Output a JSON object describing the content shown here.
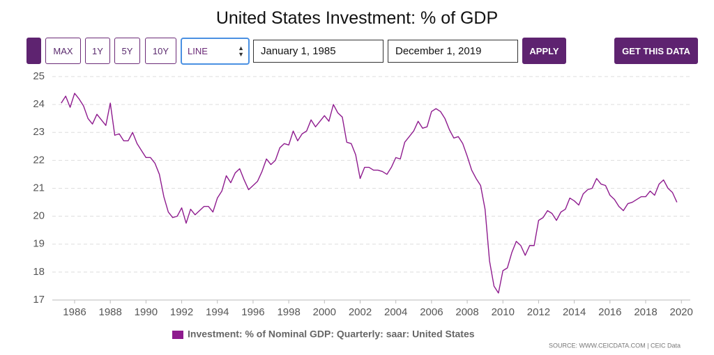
{
  "controls": {
    "range_buttons": [
      "MAX",
      "1Y",
      "5Y",
      "10Y"
    ],
    "chart_kind": "LINE",
    "start_date": "January 1, 1985",
    "end_date": "December 1, 2019",
    "apply": "APPLY",
    "get_data": "GET THIS DATA"
  },
  "source": "SOURCE: WWW.CEICDATA.COM | CEIC Data",
  "chart_data": {
    "type": "line",
    "title": "United States Investment: % of GDP",
    "xlim": [
      1984.75,
      2020.5
    ],
    "xticks": [
      1986,
      1988,
      1990,
      1992,
      1994,
      1996,
      1998,
      2000,
      2002,
      2004,
      2006,
      2008,
      2010,
      2012,
      2014,
      2016,
      2018,
      2020
    ],
    "ylim": [
      17,
      25
    ],
    "yticks": [
      17,
      18,
      19,
      20,
      21,
      22,
      23,
      24,
      25
    ],
    "grid": true,
    "x": [
      1985.25,
      1985.5,
      1985.75,
      1986,
      1986.25,
      1986.5,
      1986.75,
      1987,
      1987.25,
      1987.5,
      1987.75,
      1988,
      1988.25,
      1988.5,
      1988.75,
      1989,
      1989.25,
      1989.5,
      1989.75,
      1990,
      1990.25,
      1990.5,
      1990.75,
      1991,
      1991.25,
      1991.5,
      1991.75,
      1992,
      1992.25,
      1992.5,
      1992.75,
      1993,
      1993.25,
      1993.5,
      1993.75,
      1994,
      1994.25,
      1994.5,
      1994.75,
      1995,
      1995.25,
      1995.5,
      1995.75,
      1996,
      1996.25,
      1996.5,
      1996.75,
      1997,
      1997.25,
      1997.5,
      1997.75,
      1998,
      1998.25,
      1998.5,
      1998.75,
      1999,
      1999.25,
      1999.5,
      1999.75,
      2000,
      2000.25,
      2000.5,
      2000.75,
      2001,
      2001.25,
      2001.5,
      2001.75,
      2002,
      2002.25,
      2002.5,
      2002.75,
      2003,
      2003.25,
      2003.5,
      2003.75,
      2004,
      2004.25,
      2004.5,
      2004.75,
      2005,
      2005.25,
      2005.5,
      2005.75,
      2006,
      2006.25,
      2006.5,
      2006.75,
      2007,
      2007.25,
      2007.5,
      2007.75,
      2008,
      2008.25,
      2008.5,
      2008.75,
      2009,
      2009.25,
      2009.5,
      2009.75,
      2010,
      2010.25,
      2010.5,
      2010.75,
      2011,
      2011.25,
      2011.5,
      2011.75,
      2012,
      2012.25,
      2012.5,
      2012.75,
      2013,
      2013.25,
      2013.5,
      2013.75,
      2014,
      2014.25,
      2014.5,
      2014.75,
      2015,
      2015.25,
      2015.5,
      2015.75,
      2016,
      2016.25,
      2016.5,
      2016.75,
      2017,
      2017.25,
      2017.5,
      2017.75,
      2018,
      2018.25,
      2018.5,
      2018.75,
      2019,
      2019.25,
      2019.5,
      2019.75
    ],
    "series": [
      {
        "name": "Investment: % of Nominal GDP: Quarterly: saar: United States",
        "color": "#8e1b8e",
        "values": [
          24.05,
          24.3,
          23.9,
          24.4,
          24.2,
          23.95,
          23.5,
          23.3,
          23.65,
          23.45,
          23.25,
          24.05,
          22.9,
          22.95,
          22.7,
          22.7,
          23.0,
          22.6,
          22.35,
          22.1,
          22.1,
          21.9,
          21.5,
          20.7,
          20.15,
          19.95,
          20.0,
          20.3,
          19.75,
          20.25,
          20.05,
          20.2,
          20.35,
          20.35,
          20.15,
          20.65,
          20.9,
          21.45,
          21.2,
          21.55,
          21.7,
          21.3,
          20.95,
          21.1,
          21.25,
          21.6,
          22.05,
          21.85,
          22.0,
          22.45,
          22.6,
          22.55,
          23.05,
          22.7,
          22.95,
          23.05,
          23.45,
          23.2,
          23.4,
          23.6,
          23.4,
          24.0,
          23.7,
          23.55,
          22.65,
          22.6,
          22.2,
          21.35,
          21.75,
          21.75,
          21.65,
          21.65,
          21.6,
          21.5,
          21.75,
          22.1,
          22.05,
          22.65,
          22.85,
          23.05,
          23.4,
          23.15,
          23.2,
          23.75,
          23.85,
          23.75,
          23.5,
          23.1,
          22.8,
          22.85,
          22.6,
          22.15,
          21.65,
          21.35,
          21.1,
          20.25,
          18.4,
          17.5,
          17.25,
          18.05,
          18.15,
          18.7,
          19.1,
          18.95,
          18.6,
          18.95,
          18.95,
          19.85,
          19.95,
          20.2,
          20.1,
          19.85,
          20.15,
          20.25,
          20.65,
          20.55,
          20.4,
          20.8,
          20.95,
          21.0,
          21.35,
          21.15,
          21.1,
          20.75,
          20.6,
          20.35,
          20.2,
          20.45,
          20.5,
          20.6,
          20.7,
          20.7,
          20.9,
          20.75,
          21.15,
          21.3,
          21.0,
          20.85,
          20.5
        ]
      }
    ]
  }
}
